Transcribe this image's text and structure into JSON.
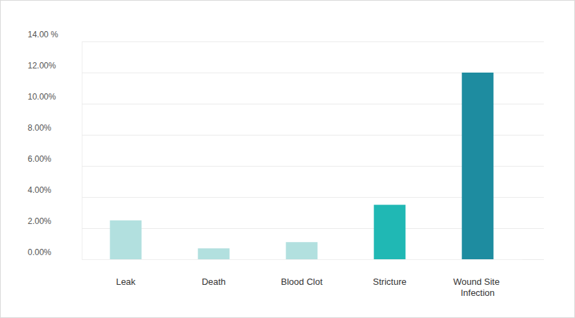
{
  "chart_data": {
    "type": "bar",
    "categories": [
      "Leak",
      "Death",
      "Blood Clot",
      "Stricture",
      "Wound Site Infection"
    ],
    "values": [
      2.5,
      0.7,
      1.1,
      3.5,
      12.0
    ],
    "colors": [
      "#b2e0df",
      "#b2e0df",
      "#b2e0df",
      "#20b8b4",
      "#1e8ca0"
    ],
    "ylim": [
      0,
      14
    ],
    "yticks": [
      {
        "value": 0,
        "label": "0.00%"
      },
      {
        "value": 2,
        "label": "2.00%"
      },
      {
        "value": 4,
        "label": "4.00%"
      },
      {
        "value": 6,
        "label": "6.00%"
      },
      {
        "value": 8,
        "label": "8.00%"
      },
      {
        "value": 10,
        "label": "10.00%"
      },
      {
        "value": 12,
        "label": "12.00%"
      },
      {
        "value": 14,
        "label": "14.00 %"
      }
    ],
    "grid": true
  }
}
